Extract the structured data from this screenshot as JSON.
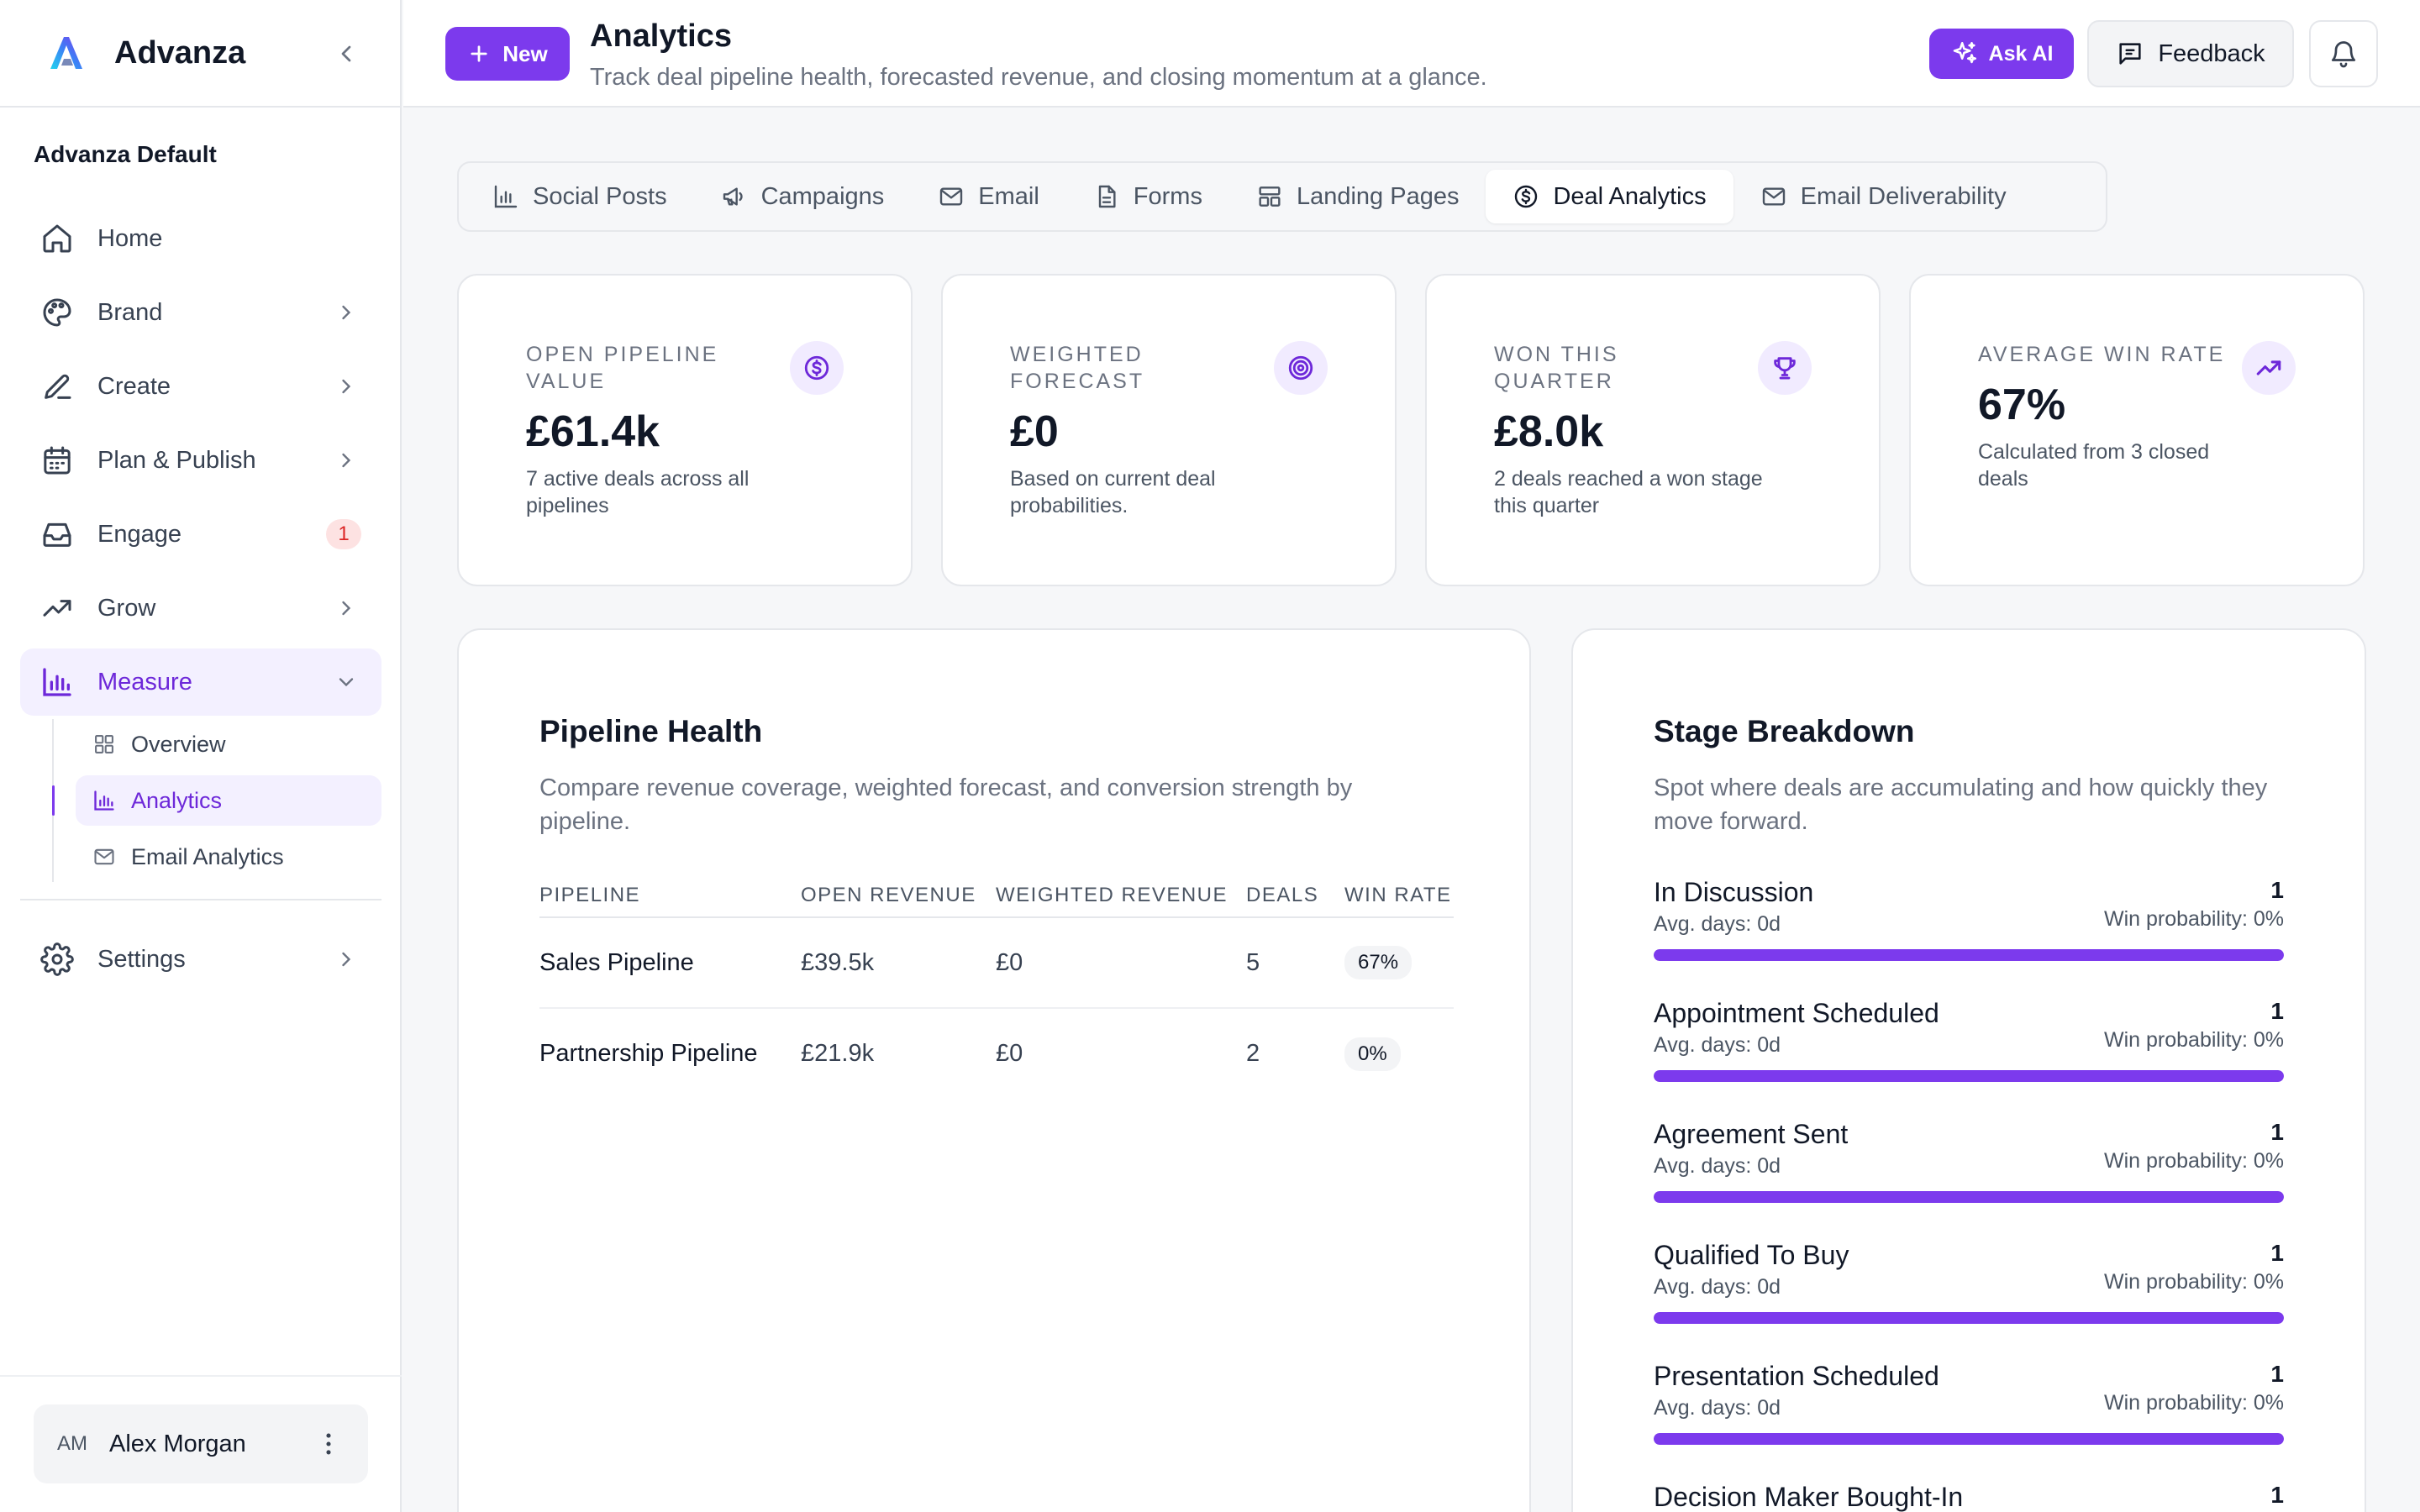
{
  "app": {
    "name": "Advanza",
    "workspace": "Advanza Default"
  },
  "sidebar": {
    "items": [
      {
        "label": "Home",
        "icon": "home-icon"
      },
      {
        "label": "Brand",
        "icon": "palette-icon"
      },
      {
        "label": "Create",
        "icon": "pen-icon"
      },
      {
        "label": "Plan & Publish",
        "icon": "calendar-icon"
      },
      {
        "label": "Engage",
        "icon": "inbox-icon",
        "badge": "1"
      },
      {
        "label": "Grow",
        "icon": "trending-icon"
      },
      {
        "label": "Measure",
        "icon": "bar-chart-icon"
      }
    ],
    "measure_sub": [
      {
        "label": "Overview"
      },
      {
        "label": "Analytics"
      },
      {
        "label": "Email Analytics"
      }
    ],
    "settings": "Settings",
    "user": {
      "initials": "AM",
      "name": "Alex Morgan"
    }
  },
  "header": {
    "new_label": "New",
    "title": "Analytics",
    "subtitle": "Track deal pipeline health, forecasted revenue, and closing momentum at a glance.",
    "ask_ai": "Ask AI",
    "feedback": "Feedback"
  },
  "tabs": [
    {
      "label": "Social Posts",
      "icon": "bar-chart-icon"
    },
    {
      "label": "Campaigns",
      "icon": "megaphone-icon"
    },
    {
      "label": "Email",
      "icon": "mail-icon"
    },
    {
      "label": "Forms",
      "icon": "document-icon"
    },
    {
      "label": "Landing Pages",
      "icon": "layout-icon"
    },
    {
      "label": "Deal Analytics",
      "icon": "dollar-circle-icon"
    },
    {
      "label": "Email Deliverability",
      "icon": "mail-icon"
    }
  ],
  "active_tab": "Deal Analytics",
  "kpis": [
    {
      "label": "Open Pipeline Value",
      "value": "£61.4k",
      "desc": "7 active deals across all pipelines",
      "icon": "dollar-circle-icon"
    },
    {
      "label": "Weighted Forecast",
      "value": "£0",
      "desc": "Based on current deal probabilities.",
      "icon": "target-icon"
    },
    {
      "label": "Won This Quarter",
      "value": "£8.0k",
      "desc": "2 deals reached a won stage this quarter",
      "icon": "trophy-icon"
    },
    {
      "label": "Average Win Rate",
      "value": "67%",
      "desc": "Calculated from 3 closed deals",
      "icon": "trending-up-icon"
    }
  ],
  "pipeline_health": {
    "title": "Pipeline Health",
    "desc": "Compare revenue coverage, weighted forecast, and conversion strength by pipeline.",
    "columns": [
      "PIPELINE",
      "OPEN REVENUE",
      "WEIGHTED REVENUE",
      "DEALS",
      "WIN RATE"
    ],
    "rows": [
      {
        "pipeline": "Sales Pipeline",
        "open": "£39.5k",
        "weighted": "£0",
        "deals": "5",
        "win_rate": "67%"
      },
      {
        "pipeline": "Partnership Pipeline",
        "open": "£21.9k",
        "weighted": "£0",
        "deals": "2",
        "win_rate": "0%"
      }
    ]
  },
  "stage_breakdown": {
    "title": "Stage Breakdown",
    "desc": "Spot where deals are accumulating and how quickly they move forward.",
    "stages": [
      {
        "name": "In Discussion",
        "count": "1",
        "days": "Avg. days: 0d",
        "prob": "Win probability: 0%",
        "fill": 1.0
      },
      {
        "name": "Appointment Scheduled",
        "count": "1",
        "days": "Avg. days: 0d",
        "prob": "Win probability: 0%",
        "fill": 1.0
      },
      {
        "name": "Agreement Sent",
        "count": "1",
        "days": "Avg. days: 0d",
        "prob": "Win probability: 0%",
        "fill": 1.0
      },
      {
        "name": "Qualified To Buy",
        "count": "1",
        "days": "Avg. days: 0d",
        "prob": "Win probability: 0%",
        "fill": 1.0
      },
      {
        "name": "Presentation Scheduled",
        "count": "1",
        "days": "Avg. days: 0d",
        "prob": "Win probability: 0%",
        "fill": 1.0
      },
      {
        "name": "Decision Maker Bought-In",
        "count": "1"
      }
    ]
  },
  "colors": {
    "accent": "#7c3aed",
    "accent_soft": "#f1ebff",
    "badge_bg": "#fde2e2",
    "badge_text": "#dc2626"
  }
}
